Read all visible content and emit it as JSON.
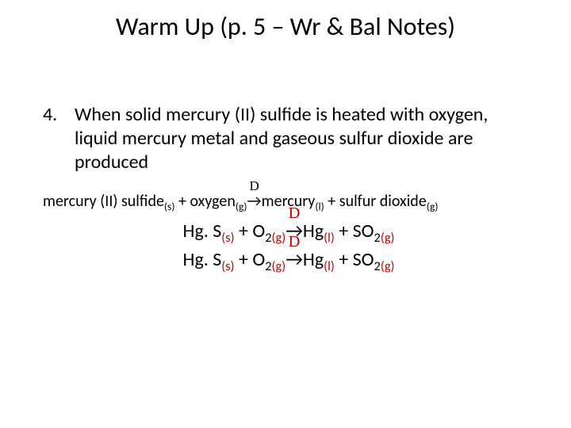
{
  "colors": {
    "background": "#ffffff",
    "text": "#000000",
    "accent_red": "#c00000"
  },
  "typography": {
    "title_fontsize": 32,
    "body_fontsize": 24,
    "wordeq_fontsize": 20,
    "sub_scale": 0.68,
    "font_family": "Calibri"
  },
  "title": "Warm Up (p. 5 – Wr & Bal Notes)",
  "question": {
    "number": "4.",
    "text": "When solid mercury (II) sulfide is heated with oxygen, liquid mercury metal and gaseous sulfur dioxide are produced"
  },
  "word_equation": {
    "lhs1": "mercury (II) sulfide",
    "lhs1_state": "(s)",
    "plus1": " + ",
    "lhs2": "oxygen",
    "lhs2_state": "(g)",
    "delta": "D",
    "arrow": " → ",
    "rhs1": "mercury",
    "rhs1_state": "(l)",
    "plus2": " + ",
    "rhs2": "sulfur dioxide",
    "rhs2_state": "(g)"
  },
  "chem_equation": {
    "r1_formula": "Hg. S",
    "r1_state": "(s)",
    "plus1": "  +  ",
    "r2_formula": "O",
    "r2_sub": "2",
    "r2_state": "(g)",
    "delta": "D",
    "arrow": " → ",
    "p1_formula": "Hg",
    "p1_state": "(l)",
    "plus2": "  +  ",
    "p2_formula": "SO",
    "p2_sub": "2",
    "p2_state": "(g)"
  }
}
